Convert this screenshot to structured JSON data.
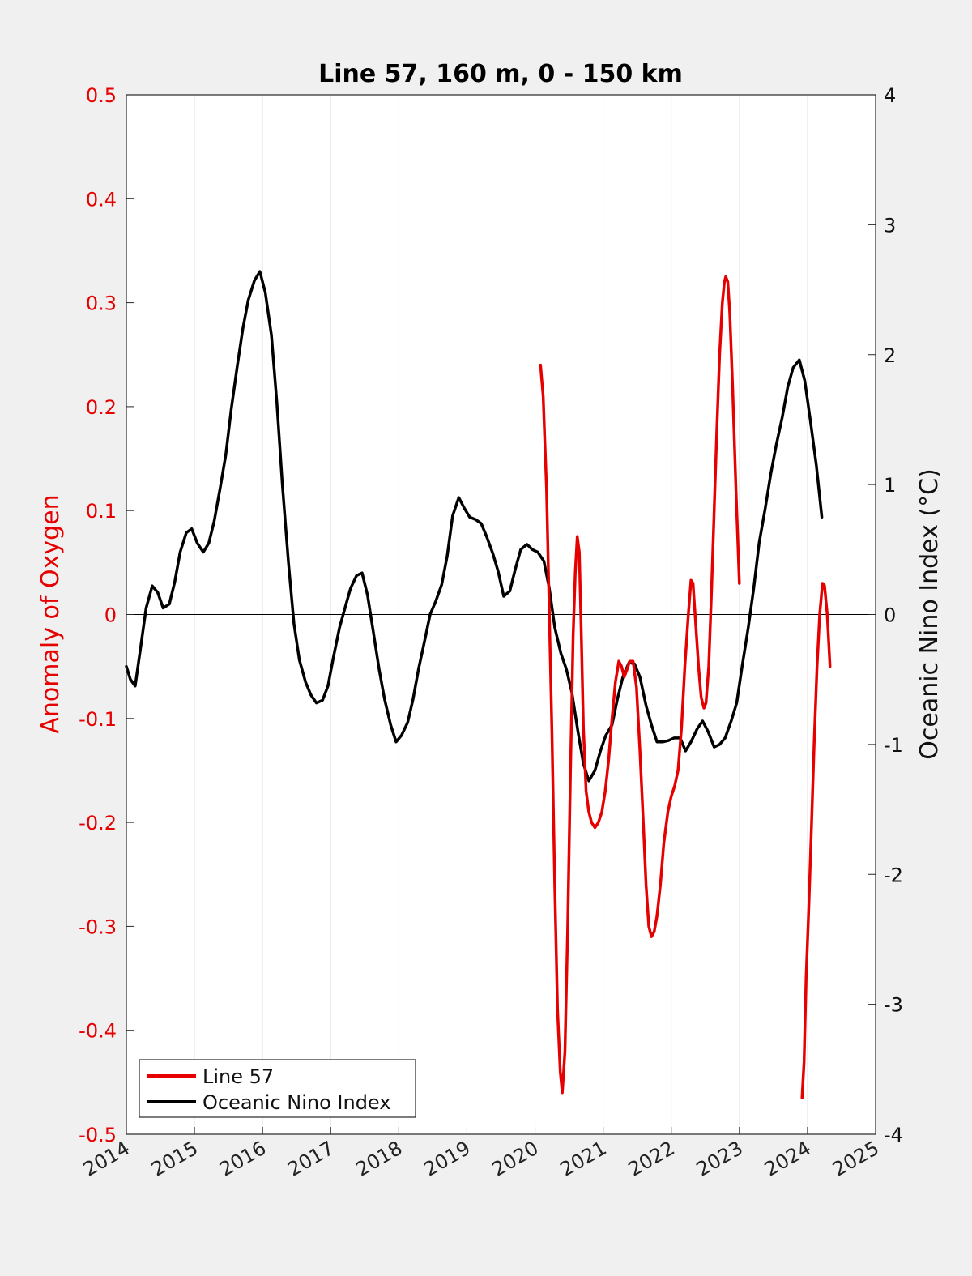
{
  "chart_data": {
    "type": "line",
    "title": "Line 57, 160 m, 0 - 150 km",
    "xlim": [
      2014,
      2025
    ],
    "x_ticks": [
      "2014",
      "2015",
      "2016",
      "2017",
      "2018",
      "2019",
      "2020",
      "2021",
      "2022",
      "2023",
      "2024",
      "2025"
    ],
    "left_axis": {
      "label": "Anomaly of Oxygen",
      "ylim": [
        -0.5,
        0.5
      ],
      "ticks": [
        "-0.5",
        "-0.4",
        "-0.3",
        "-0.2",
        "-0.1",
        "0",
        "0.1",
        "0.2",
        "0.3",
        "0.4",
        "0.5"
      ],
      "color": "#e60000"
    },
    "right_axis": {
      "label": "Oceanic Nino Index (°C)",
      "ylim": [
        -4,
        4
      ],
      "ticks": [
        "-4",
        "-3",
        "-2",
        "-1",
        "0",
        "1",
        "2",
        "3",
        "4"
      ],
      "color": "#000000"
    },
    "grid": "vertical",
    "zero_line": true,
    "legend": {
      "position": "bottom-left",
      "entries": [
        "Line 57",
        "Oceanic Nino Index"
      ]
    },
    "series": [
      {
        "name": "Line 57",
        "axis": "left",
        "color": "#e60000",
        "segments": [
          [
            [
              2020.08,
              0.24
            ],
            [
              2020.12,
              0.21
            ],
            [
              2020.17,
              0.12
            ],
            [
              2020.21,
              0.0
            ],
            [
              2020.25,
              -0.12
            ],
            [
              2020.29,
              -0.26
            ],
            [
              2020.33,
              -0.38
            ],
            [
              2020.37,
              -0.44
            ],
            [
              2020.4,
              -0.46
            ],
            [
              2020.44,
              -0.42
            ],
            [
              2020.48,
              -0.3
            ],
            [
              2020.52,
              -0.15
            ],
            [
              2020.56,
              -0.02
            ],
            [
              2020.59,
              0.04
            ],
            [
              2020.62,
              0.075
            ],
            [
              2020.65,
              0.06
            ],
            [
              2020.68,
              -0.02
            ],
            [
              2020.71,
              -0.11
            ],
            [
              2020.75,
              -0.17
            ],
            [
              2020.79,
              -0.19
            ],
            [
              2020.83,
              -0.2
            ],
            [
              2020.88,
              -0.205
            ],
            [
              2020.93,
              -0.2
            ],
            [
              2020.98,
              -0.19
            ],
            [
              2021.03,
              -0.17
            ],
            [
              2021.08,
              -0.14
            ],
            [
              2021.13,
              -0.1
            ],
            [
              2021.18,
              -0.065
            ],
            [
              2021.23,
              -0.045
            ],
            [
              2021.27,
              -0.05
            ],
            [
              2021.31,
              -0.06
            ],
            [
              2021.35,
              -0.053
            ],
            [
              2021.39,
              -0.045
            ],
            [
              2021.44,
              -0.045
            ],
            [
              2021.49,
              -0.07
            ],
            [
              2021.54,
              -0.13
            ],
            [
              2021.59,
              -0.2
            ],
            [
              2021.63,
              -0.26
            ],
            [
              2021.67,
              -0.3
            ],
            [
              2021.71,
              -0.31
            ],
            [
              2021.75,
              -0.305
            ],
            [
              2021.79,
              -0.29
            ],
            [
              2021.84,
              -0.26
            ],
            [
              2021.89,
              -0.22
            ],
            [
              2021.95,
              -0.19
            ],
            [
              2022.0,
              -0.175
            ],
            [
              2022.05,
              -0.165
            ],
            [
              2022.1,
              -0.15
            ],
            [
              2022.15,
              -0.11
            ],
            [
              2022.2,
              -0.05
            ],
            [
              2022.25,
              0.0
            ],
            [
              2022.29,
              0.033
            ],
            [
              2022.32,
              0.03
            ],
            [
              2022.36,
              -0.01
            ],
            [
              2022.4,
              -0.05
            ],
            [
              2022.44,
              -0.08
            ],
            [
              2022.48,
              -0.09
            ],
            [
              2022.51,
              -0.085
            ],
            [
              2022.55,
              -0.05
            ],
            [
              2022.59,
              0.02
            ],
            [
              2022.63,
              0.1
            ],
            [
              2022.67,
              0.18
            ],
            [
              2022.71,
              0.25
            ],
            [
              2022.75,
              0.3
            ],
            [
              2022.78,
              0.32
            ],
            [
              2022.8,
              0.325
            ],
            [
              2022.83,
              0.32
            ],
            [
              2022.86,
              0.29
            ],
            [
              2022.9,
              0.22
            ],
            [
              2022.95,
              0.12
            ],
            [
              2023.0,
              0.03
            ]
          ],
          [
            [
              2023.92,
              -0.465
            ],
            [
              2023.95,
              -0.43
            ],
            [
              2023.98,
              -0.35
            ],
            [
              2024.02,
              -0.28
            ],
            [
              2024.06,
              -0.2
            ],
            [
              2024.1,
              -0.12
            ],
            [
              2024.14,
              -0.05
            ],
            [
              2024.18,
              0.0
            ],
            [
              2024.22,
              0.03
            ],
            [
              2024.25,
              0.028
            ],
            [
              2024.29,
              0.0
            ],
            [
              2024.33,
              -0.05
            ]
          ]
        ]
      },
      {
        "name": "Oceanic Nino Index",
        "axis": "right",
        "color": "#000000",
        "points": [
          [
            2014.0,
            -0.4
          ],
          [
            2014.06,
            -0.5
          ],
          [
            2014.13,
            -0.55
          ],
          [
            2014.21,
            -0.25
          ],
          [
            2014.29,
            0.05
          ],
          [
            2014.38,
            0.22
          ],
          [
            2014.46,
            0.17
          ],
          [
            2014.54,
            0.05
          ],
          [
            2014.63,
            0.08
          ],
          [
            2014.71,
            0.25
          ],
          [
            2014.79,
            0.48
          ],
          [
            2014.88,
            0.63
          ],
          [
            2014.96,
            0.66
          ],
          [
            2015.04,
            0.55
          ],
          [
            2015.13,
            0.48
          ],
          [
            2015.21,
            0.55
          ],
          [
            2015.29,
            0.72
          ],
          [
            2015.38,
            0.98
          ],
          [
            2015.46,
            1.23
          ],
          [
            2015.54,
            1.58
          ],
          [
            2015.63,
            1.92
          ],
          [
            2015.71,
            2.2
          ],
          [
            2015.79,
            2.42
          ],
          [
            2015.88,
            2.57
          ],
          [
            2015.96,
            2.64
          ],
          [
            2016.04,
            2.48
          ],
          [
            2016.13,
            2.15
          ],
          [
            2016.21,
            1.63
          ],
          [
            2016.29,
            1.0
          ],
          [
            2016.38,
            0.4
          ],
          [
            2016.46,
            -0.07
          ],
          [
            2016.54,
            -0.35
          ],
          [
            2016.63,
            -0.52
          ],
          [
            2016.71,
            -0.62
          ],
          [
            2016.79,
            -0.68
          ],
          [
            2016.88,
            -0.66
          ],
          [
            2016.96,
            -0.55
          ],
          [
            2017.04,
            -0.33
          ],
          [
            2017.13,
            -0.1
          ],
          [
            2017.21,
            0.05
          ],
          [
            2017.29,
            0.2
          ],
          [
            2017.38,
            0.3
          ],
          [
            2017.46,
            0.32
          ],
          [
            2017.54,
            0.15
          ],
          [
            2017.63,
            -0.15
          ],
          [
            2017.71,
            -0.42
          ],
          [
            2017.79,
            -0.65
          ],
          [
            2017.88,
            -0.85
          ],
          [
            2017.96,
            -0.98
          ],
          [
            2018.04,
            -0.93
          ],
          [
            2018.13,
            -0.83
          ],
          [
            2018.21,
            -0.65
          ],
          [
            2018.29,
            -0.42
          ],
          [
            2018.38,
            -0.2
          ],
          [
            2018.46,
            0.0
          ],
          [
            2018.54,
            0.1
          ],
          [
            2018.63,
            0.23
          ],
          [
            2018.71,
            0.45
          ],
          [
            2018.79,
            0.76
          ],
          [
            2018.88,
            0.9
          ],
          [
            2018.96,
            0.82
          ],
          [
            2019.04,
            0.75
          ],
          [
            2019.13,
            0.73
          ],
          [
            2019.21,
            0.7
          ],
          [
            2019.29,
            0.6
          ],
          [
            2019.38,
            0.47
          ],
          [
            2019.46,
            0.33
          ],
          [
            2019.54,
            0.14
          ],
          [
            2019.63,
            0.18
          ],
          [
            2019.71,
            0.35
          ],
          [
            2019.79,
            0.5
          ],
          [
            2019.88,
            0.54
          ],
          [
            2019.96,
            0.5
          ],
          [
            2020.04,
            0.48
          ],
          [
            2020.13,
            0.41
          ],
          [
            2020.21,
            0.2
          ],
          [
            2020.29,
            -0.1
          ],
          [
            2020.38,
            -0.3
          ],
          [
            2020.46,
            -0.42
          ],
          [
            2020.54,
            -0.6
          ],
          [
            2020.63,
            -0.9
          ],
          [
            2020.71,
            -1.15
          ],
          [
            2020.79,
            -1.28
          ],
          [
            2020.88,
            -1.2
          ],
          [
            2020.96,
            -1.05
          ],
          [
            2021.04,
            -0.93
          ],
          [
            2021.13,
            -0.85
          ],
          [
            2021.21,
            -0.65
          ],
          [
            2021.29,
            -0.48
          ],
          [
            2021.38,
            -0.37
          ],
          [
            2021.46,
            -0.38
          ],
          [
            2021.54,
            -0.48
          ],
          [
            2021.63,
            -0.7
          ],
          [
            2021.71,
            -0.85
          ],
          [
            2021.79,
            -0.98
          ],
          [
            2021.88,
            -0.98
          ],
          [
            2021.96,
            -0.97
          ],
          [
            2022.04,
            -0.95
          ],
          [
            2022.13,
            -0.95
          ],
          [
            2022.21,
            -1.05
          ],
          [
            2022.29,
            -0.98
          ],
          [
            2022.38,
            -0.88
          ],
          [
            2022.46,
            -0.82
          ],
          [
            2022.54,
            -0.9
          ],
          [
            2022.63,
            -1.02
          ],
          [
            2022.71,
            -1.0
          ],
          [
            2022.79,
            -0.95
          ],
          [
            2022.88,
            -0.82
          ],
          [
            2022.96,
            -0.68
          ],
          [
            2023.04,
            -0.4
          ],
          [
            2023.13,
            -0.1
          ],
          [
            2023.21,
            0.2
          ],
          [
            2023.29,
            0.55
          ],
          [
            2023.38,
            0.82
          ],
          [
            2023.46,
            1.08
          ],
          [
            2023.54,
            1.3
          ],
          [
            2023.63,
            1.52
          ],
          [
            2023.71,
            1.75
          ],
          [
            2023.79,
            1.9
          ],
          [
            2023.88,
            1.96
          ],
          [
            2023.96,
            1.8
          ],
          [
            2024.04,
            1.5
          ],
          [
            2024.13,
            1.15
          ],
          [
            2024.21,
            0.75
          ]
        ]
      }
    ]
  }
}
